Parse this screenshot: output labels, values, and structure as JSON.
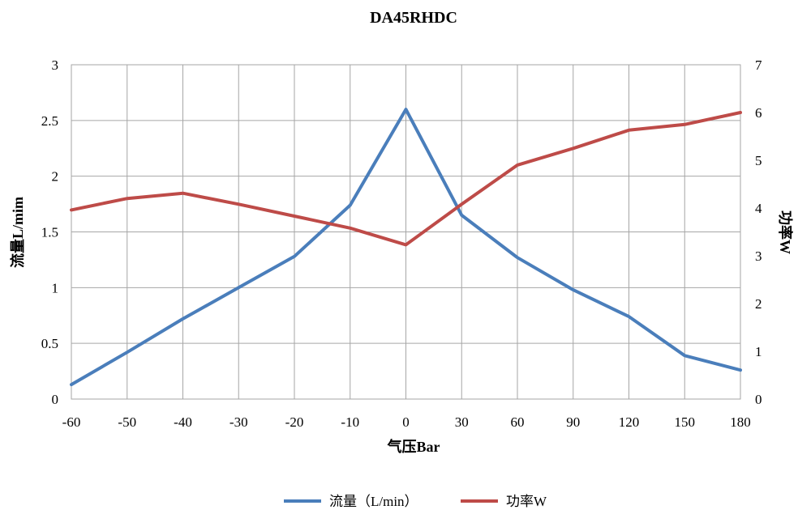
{
  "chart_data": {
    "type": "line",
    "title": "DA45RHDC",
    "xlabel": "气压Bar",
    "ylabel_left": "流量L/mim",
    "ylabel_right": "功率W",
    "categories": [
      "-60",
      "-50",
      "-40",
      "-30",
      "-20",
      "-10",
      "0",
      "30",
      "60",
      "90",
      "120",
      "150",
      "180"
    ],
    "y_left_ticks": [
      "0",
      "0.5",
      "1",
      "1.5",
      "2",
      "2.5",
      "3"
    ],
    "y_right_ticks": [
      "0",
      "1",
      "2",
      "3",
      "4",
      "5",
      "6",
      "7"
    ],
    "ylim_left": [
      0,
      3
    ],
    "ylim_right": [
      0,
      7
    ],
    "grid": true,
    "legend_position": "bottom",
    "series": [
      {
        "name": "流量（L/min）",
        "axis": "left",
        "color": "#4a7ebb",
        "values": [
          0.13,
          0.42,
          0.72,
          1.0,
          1.28,
          1.74,
          2.6,
          1.65,
          1.27,
          0.98,
          0.74,
          0.39,
          0.26
        ]
      },
      {
        "name": "功率W",
        "axis": "right",
        "color": "#be4b48",
        "values": [
          3.96,
          4.2,
          4.31,
          4.08,
          3.83,
          3.58,
          3.23,
          4.08,
          4.9,
          5.25,
          5.63,
          5.75,
          6.0
        ]
      }
    ]
  }
}
